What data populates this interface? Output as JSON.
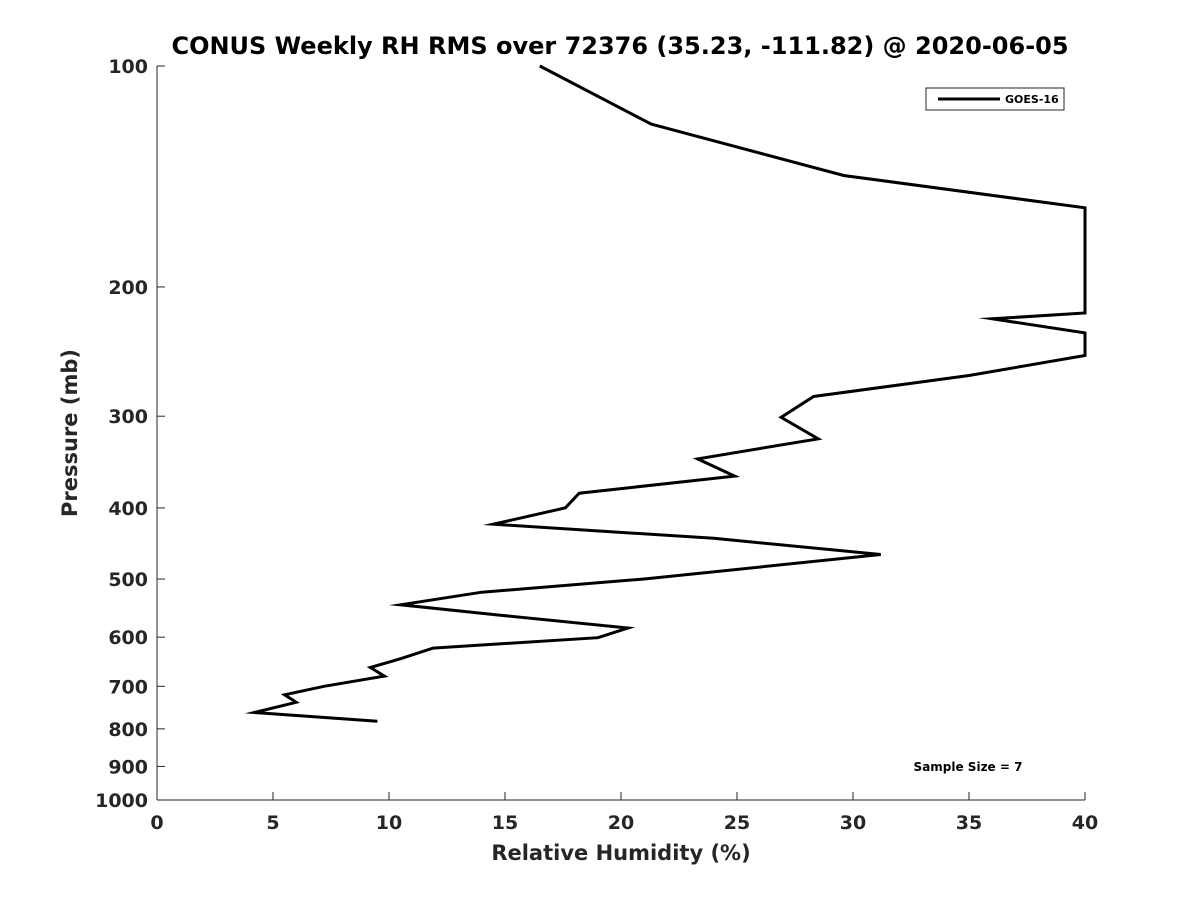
{
  "chart_data": {
    "type": "line",
    "title": "CONUS Weekly RH RMS over 72376 (35.23, -111.82) @ 2020-06-05",
    "xlabel": "Relative Humidity (%)",
    "ylabel": "Pressure (mb)",
    "xlim": [
      0,
      40
    ],
    "ylim": [
      1000,
      100
    ],
    "yscale": "log",
    "y_reversed": true,
    "grid": false,
    "legend_position": "top-right",
    "x_ticks": [
      0,
      5,
      10,
      15,
      20,
      25,
      30,
      35,
      40
    ],
    "y_ticks": [
      100,
      200,
      300,
      400,
      500,
      600,
      700,
      800,
      900,
      1000
    ],
    "x_tick_labels": [
      "0",
      "5",
      "10",
      "15",
      "20",
      "25",
      "30",
      "35",
      "40"
    ],
    "y_tick_labels": [
      "100",
      "200",
      "300",
      "400",
      "500",
      "600",
      "700",
      "800",
      "900",
      "1000"
    ],
    "annotation": "Sample Size = 7",
    "series": [
      {
        "name": "GOES-16",
        "color": "#000000",
        "points": [
          {
            "x": 16.5,
            "y": 100
          },
          {
            "x": 21.3,
            "y": 120
          },
          {
            "x": 29.6,
            "y": 141
          },
          {
            "x": 40.0,
            "y": 156
          },
          {
            "x": 40.0,
            "y": 217
          },
          {
            "x": 36.0,
            "y": 221
          },
          {
            "x": 40.0,
            "y": 231
          },
          {
            "x": 40.0,
            "y": 248
          },
          {
            "x": 35.0,
            "y": 264
          },
          {
            "x": 28.3,
            "y": 282
          },
          {
            "x": 26.9,
            "y": 301
          },
          {
            "x": 28.5,
            "y": 322
          },
          {
            "x": 23.3,
            "y": 343
          },
          {
            "x": 24.9,
            "y": 362
          },
          {
            "x": 18.2,
            "y": 382
          },
          {
            "x": 17.6,
            "y": 400
          },
          {
            "x": 14.5,
            "y": 421
          },
          {
            "x": 24.0,
            "y": 440
          },
          {
            "x": 31.2,
            "y": 463
          },
          {
            "x": 21.0,
            "y": 500
          },
          {
            "x": 14.0,
            "y": 521
          },
          {
            "x": 10.5,
            "y": 542
          },
          {
            "x": 14.8,
            "y": 560
          },
          {
            "x": 20.3,
            "y": 583
          },
          {
            "x": 19.0,
            "y": 601
          },
          {
            "x": 11.9,
            "y": 621
          },
          {
            "x": 10.5,
            "y": 642
          },
          {
            "x": 9.2,
            "y": 660
          },
          {
            "x": 9.8,
            "y": 678
          },
          {
            "x": 7.2,
            "y": 700
          },
          {
            "x": 5.5,
            "y": 719
          },
          {
            "x": 6.0,
            "y": 736
          },
          {
            "x": 4.2,
            "y": 760
          },
          {
            "x": 9.5,
            "y": 781
          }
        ]
      }
    ]
  }
}
